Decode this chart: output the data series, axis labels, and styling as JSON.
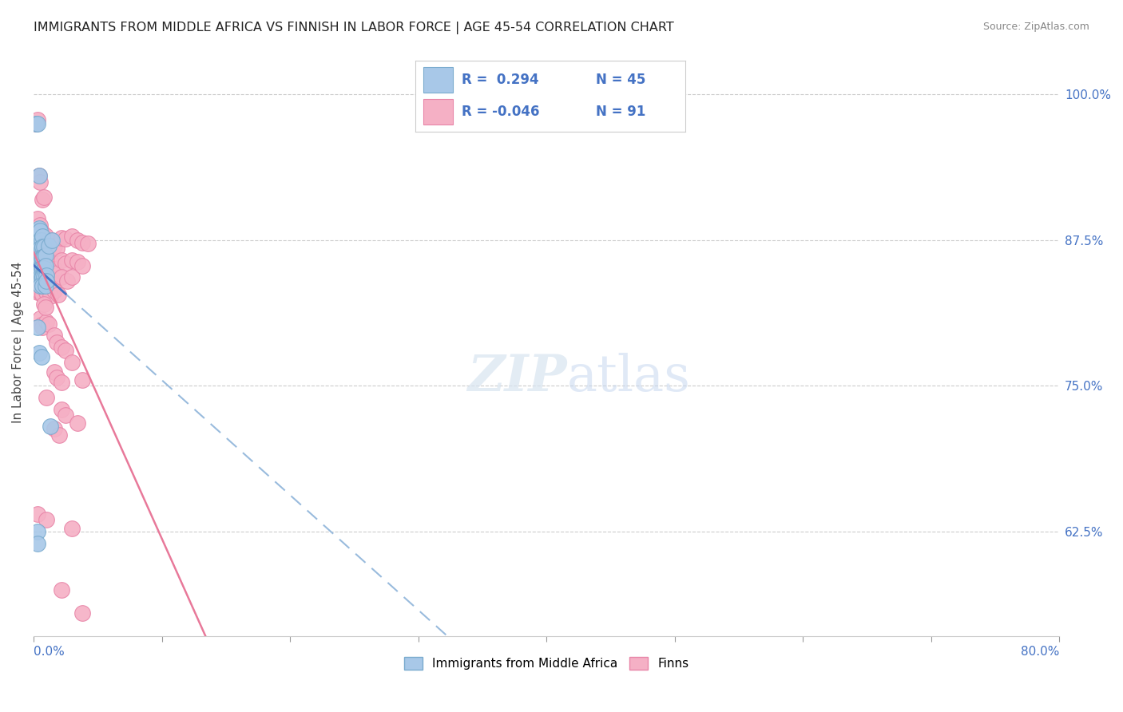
{
  "title": "IMMIGRANTS FROM MIDDLE AFRICA VS FINNISH IN LABOR FORCE | AGE 45-54 CORRELATION CHART",
  "source": "Source: ZipAtlas.com",
  "ylabel": "In Labor Force | Age 45-54",
  "xlim": [
    0.0,
    0.8
  ],
  "ylim": [
    0.535,
    1.04
  ],
  "right_ytick_values": [
    0.625,
    0.75,
    0.875,
    1.0
  ],
  "right_ytick_labels": [
    "62.5%",
    "75.0%",
    "87.5%",
    "100.0%"
  ],
  "blue_color": "#a8c8e8",
  "blue_edge_color": "#7aabce",
  "pink_color": "#f5b0c5",
  "pink_edge_color": "#e885a8",
  "blue_line_color": "#4472c4",
  "pink_line_color": "#e8799a",
  "blue_scatter": [
    [
      0.002,
      0.975
    ],
    [
      0.003,
      0.975
    ],
    [
      0.004,
      0.93
    ],
    [
      0.003,
      0.883
    ],
    [
      0.004,
      0.885
    ],
    [
      0.005,
      0.883
    ],
    [
      0.004,
      0.873
    ],
    [
      0.005,
      0.875
    ],
    [
      0.006,
      0.875
    ],
    [
      0.007,
      0.878
    ],
    [
      0.003,
      0.865
    ],
    [
      0.004,
      0.867
    ],
    [
      0.005,
      0.868
    ],
    [
      0.006,
      0.867
    ],
    [
      0.007,
      0.869
    ],
    [
      0.008,
      0.869
    ],
    [
      0.003,
      0.857
    ],
    [
      0.004,
      0.858
    ],
    [
      0.005,
      0.86
    ],
    [
      0.006,
      0.86
    ],
    [
      0.007,
      0.86
    ],
    [
      0.008,
      0.861
    ],
    [
      0.009,
      0.862
    ],
    [
      0.004,
      0.85
    ],
    [
      0.005,
      0.85
    ],
    [
      0.006,
      0.851
    ],
    [
      0.007,
      0.851
    ],
    [
      0.008,
      0.851
    ],
    [
      0.009,
      0.853
    ],
    [
      0.005,
      0.843
    ],
    [
      0.006,
      0.843
    ],
    [
      0.007,
      0.843
    ],
    [
      0.008,
      0.843
    ],
    [
      0.01,
      0.845
    ],
    [
      0.005,
      0.836
    ],
    [
      0.007,
      0.836
    ],
    [
      0.009,
      0.836
    ],
    [
      0.012,
      0.87
    ],
    [
      0.014,
      0.875
    ],
    [
      0.01,
      0.84
    ],
    [
      0.003,
      0.8
    ],
    [
      0.004,
      0.778
    ],
    [
      0.006,
      0.775
    ],
    [
      0.003,
      0.625
    ],
    [
      0.013,
      0.715
    ],
    [
      0.003,
      0.615
    ]
  ],
  "pink_scatter": [
    [
      0.002,
      0.975
    ],
    [
      0.003,
      0.978
    ],
    [
      0.004,
      0.93
    ],
    [
      0.005,
      0.925
    ],
    [
      0.007,
      0.91
    ],
    [
      0.008,
      0.912
    ],
    [
      0.003,
      0.893
    ],
    [
      0.005,
      0.888
    ],
    [
      0.006,
      0.882
    ],
    [
      0.007,
      0.88
    ],
    [
      0.008,
      0.878
    ],
    [
      0.009,
      0.879
    ],
    [
      0.004,
      0.875
    ],
    [
      0.005,
      0.873
    ],
    [
      0.006,
      0.872
    ],
    [
      0.007,
      0.871
    ],
    [
      0.009,
      0.87
    ],
    [
      0.003,
      0.867
    ],
    [
      0.004,
      0.867
    ],
    [
      0.005,
      0.867
    ],
    [
      0.006,
      0.866
    ],
    [
      0.008,
      0.866
    ],
    [
      0.003,
      0.86
    ],
    [
      0.004,
      0.86
    ],
    [
      0.005,
      0.86
    ],
    [
      0.006,
      0.86
    ],
    [
      0.007,
      0.86
    ],
    [
      0.008,
      0.859
    ],
    [
      0.009,
      0.86
    ],
    [
      0.003,
      0.853
    ],
    [
      0.004,
      0.853
    ],
    [
      0.005,
      0.853
    ],
    [
      0.006,
      0.853
    ],
    [
      0.007,
      0.852
    ],
    [
      0.009,
      0.852
    ],
    [
      0.003,
      0.845
    ],
    [
      0.004,
      0.845
    ],
    [
      0.005,
      0.844
    ],
    [
      0.006,
      0.844
    ],
    [
      0.007,
      0.843
    ],
    [
      0.003,
      0.838
    ],
    [
      0.004,
      0.838
    ],
    [
      0.005,
      0.838
    ],
    [
      0.006,
      0.837
    ],
    [
      0.003,
      0.83
    ],
    [
      0.005,
      0.83
    ],
    [
      0.007,
      0.828
    ],
    [
      0.01,
      0.875
    ],
    [
      0.012,
      0.874
    ],
    [
      0.014,
      0.875
    ],
    [
      0.01,
      0.86
    ],
    [
      0.012,
      0.86
    ],
    [
      0.013,
      0.858
    ],
    [
      0.01,
      0.845
    ],
    [
      0.012,
      0.843
    ],
    [
      0.014,
      0.84
    ],
    [
      0.01,
      0.83
    ],
    [
      0.013,
      0.827
    ],
    [
      0.016,
      0.87
    ],
    [
      0.018,
      0.868
    ],
    [
      0.016,
      0.85
    ],
    [
      0.018,
      0.847
    ],
    [
      0.016,
      0.832
    ],
    [
      0.019,
      0.828
    ],
    [
      0.022,
      0.877
    ],
    [
      0.025,
      0.876
    ],
    [
      0.022,
      0.858
    ],
    [
      0.025,
      0.855
    ],
    [
      0.022,
      0.843
    ],
    [
      0.026,
      0.84
    ],
    [
      0.03,
      0.878
    ],
    [
      0.034,
      0.875
    ],
    [
      0.03,
      0.858
    ],
    [
      0.034,
      0.856
    ],
    [
      0.03,
      0.843
    ],
    [
      0.038,
      0.873
    ],
    [
      0.042,
      0.872
    ],
    [
      0.038,
      0.853
    ],
    [
      0.005,
      0.808
    ],
    [
      0.006,
      0.802
    ],
    [
      0.007,
      0.8
    ],
    [
      0.01,
      0.805
    ],
    [
      0.012,
      0.803
    ],
    [
      0.016,
      0.793
    ],
    [
      0.018,
      0.787
    ],
    [
      0.022,
      0.783
    ],
    [
      0.025,
      0.78
    ],
    [
      0.016,
      0.762
    ],
    [
      0.018,
      0.757
    ],
    [
      0.022,
      0.753
    ],
    [
      0.03,
      0.77
    ],
    [
      0.038,
      0.755
    ],
    [
      0.022,
      0.73
    ],
    [
      0.025,
      0.725
    ],
    [
      0.016,
      0.713
    ],
    [
      0.02,
      0.708
    ],
    [
      0.01,
      0.74
    ],
    [
      0.034,
      0.718
    ],
    [
      0.003,
      0.64
    ],
    [
      0.01,
      0.635
    ],
    [
      0.03,
      0.628
    ],
    [
      0.022,
      0.575
    ],
    [
      0.038,
      0.555
    ],
    [
      0.008,
      0.82
    ],
    [
      0.009,
      0.817
    ]
  ]
}
